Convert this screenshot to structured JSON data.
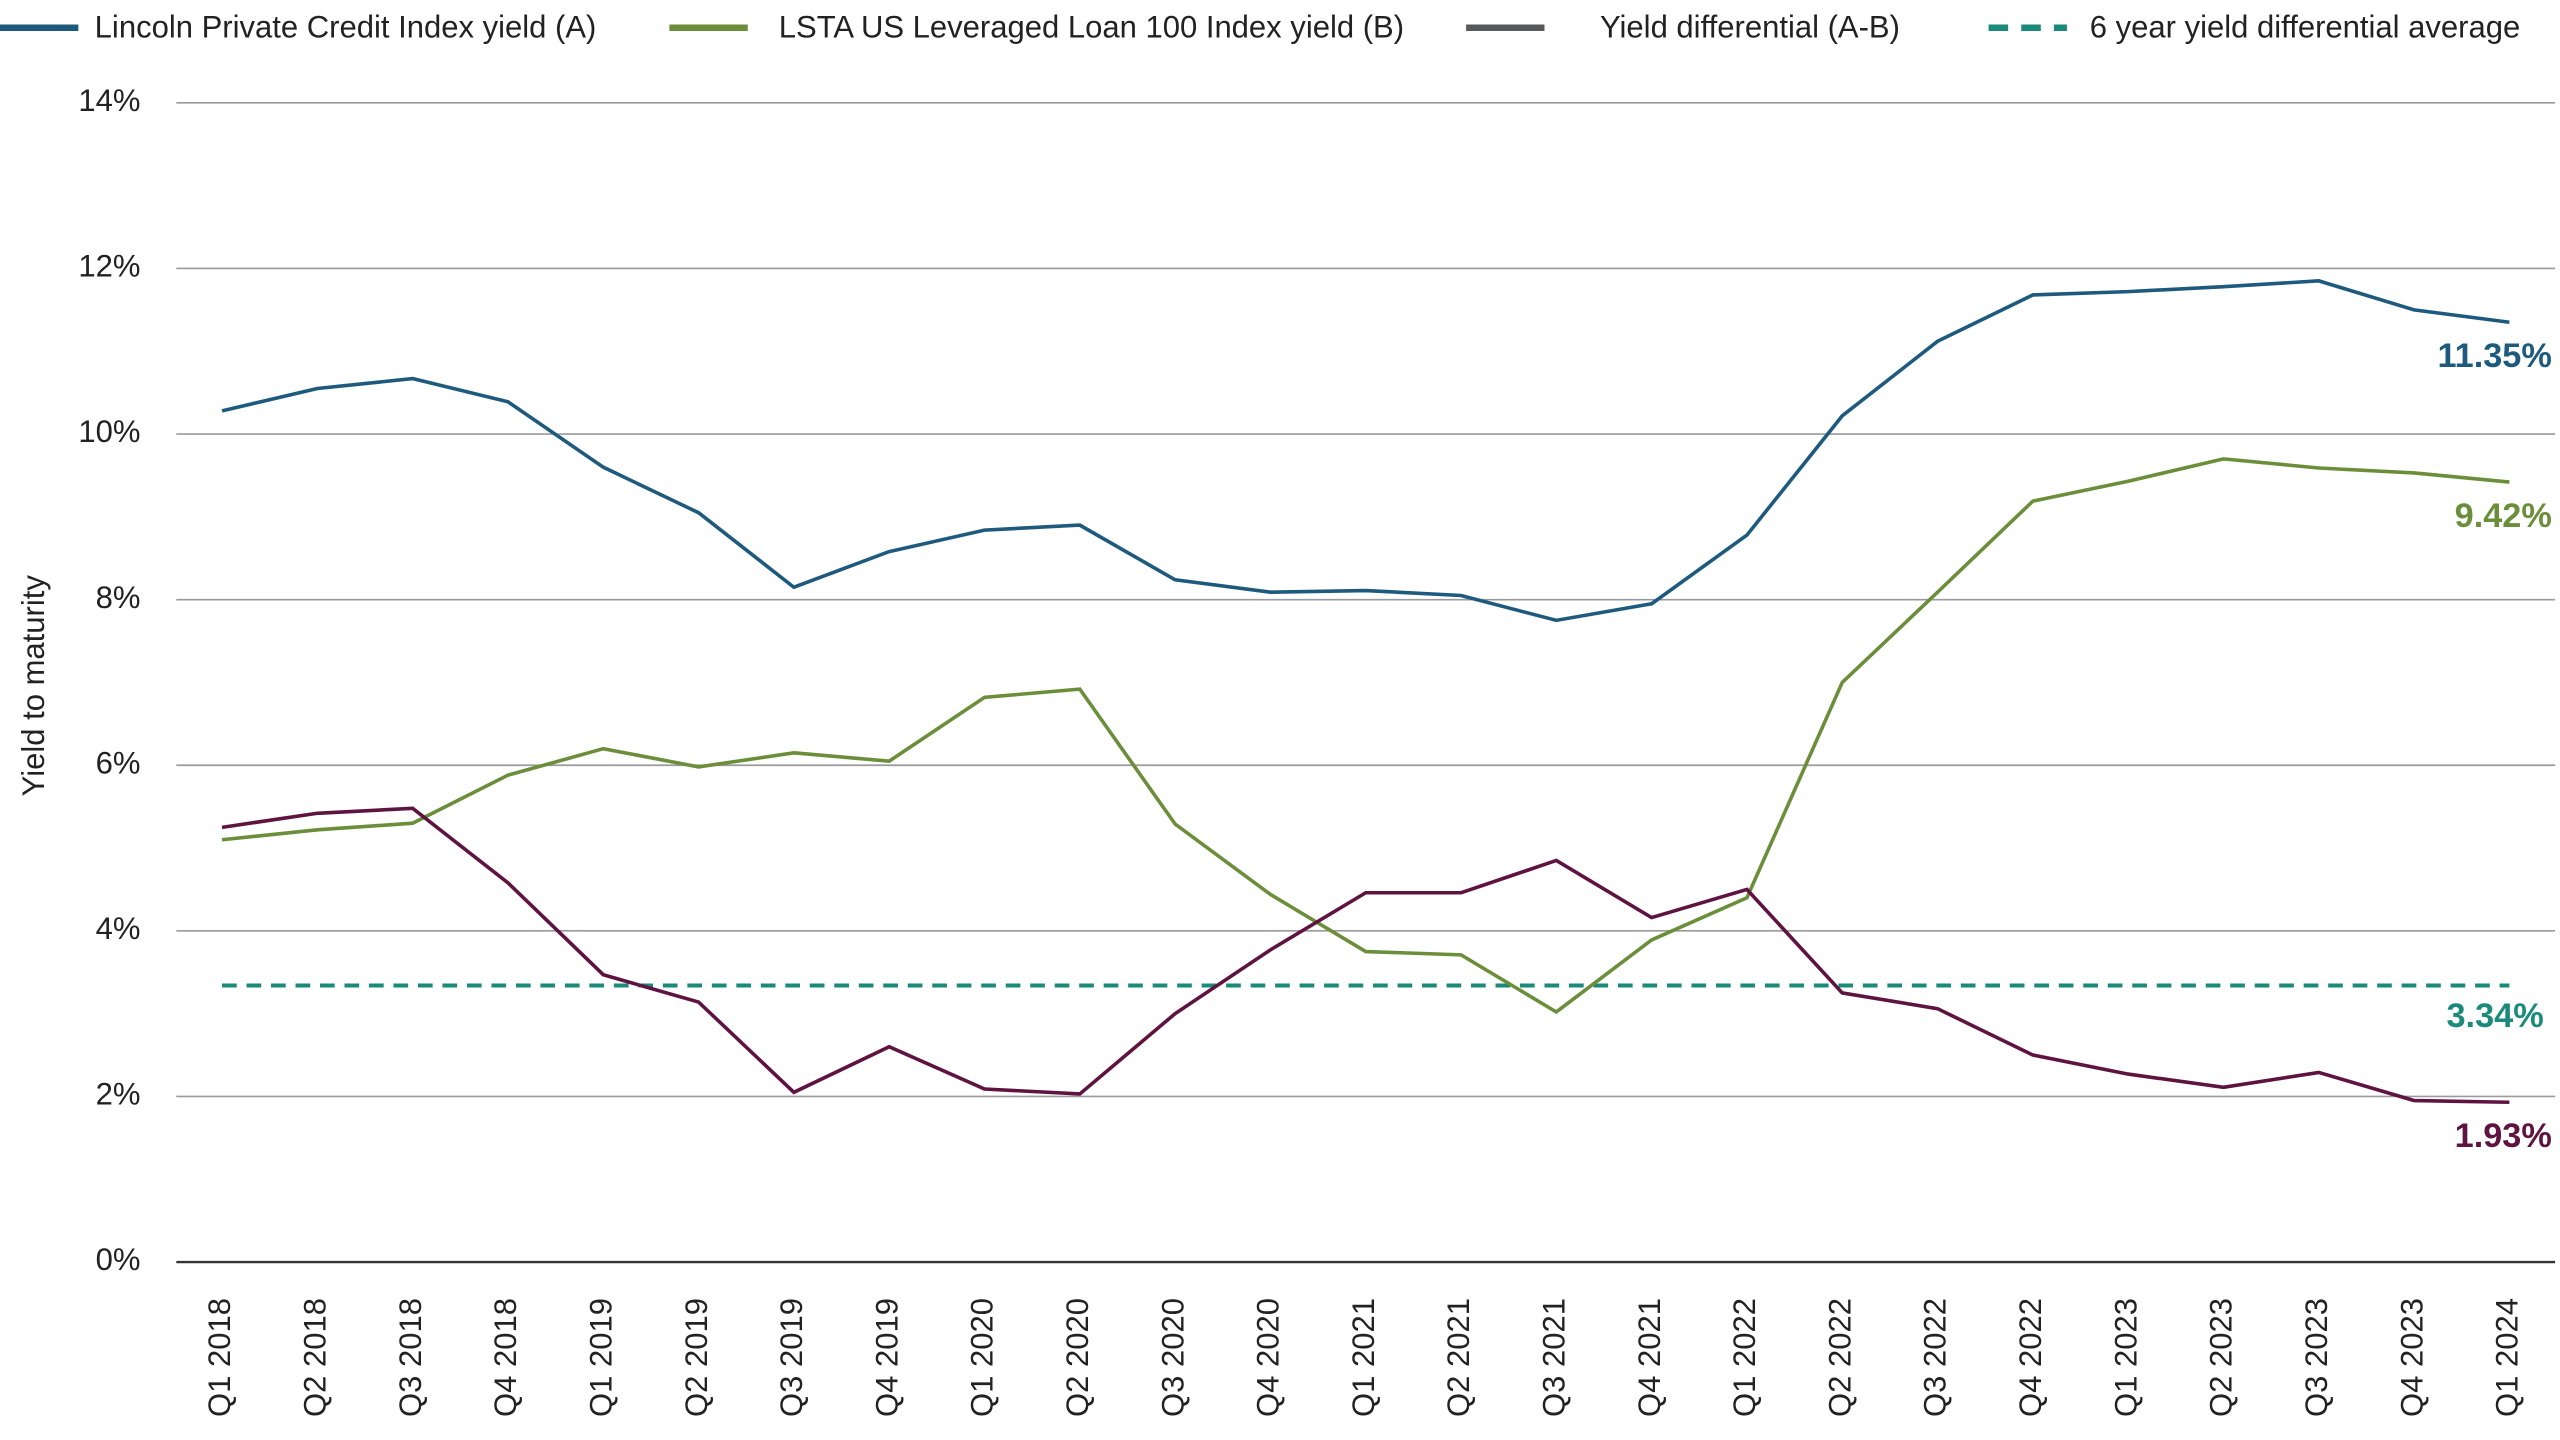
{
  "chart_data": {
    "type": "line",
    "y_label": "Yield to maturity",
    "categories": [
      "Q1 2018",
      "Q2 2018",
      "Q3 2018",
      "Q4 2018",
      "Q1 2019",
      "Q2 2019",
      "Q3 2019",
      "Q4 2019",
      "Q1 2020",
      "Q2 2020",
      "Q3 2020",
      "Q4 2020",
      "Q1 2021",
      "Q2 2021",
      "Q3 2021",
      "Q4 2021",
      "Q1 2022",
      "Q2 2022",
      "Q3 2022",
      "Q4 2022",
      "Q1 2023",
      "Q2 2023",
      "Q3 2023",
      "Q4 2023",
      "Q1 2024"
    ],
    "series": [
      {
        "name": "Lincoln Private Credit Index yield (A)",
        "color": "#1d5a7e",
        "legend_color": "#1d5a7e",
        "end_label": "11.35%",
        "values": [
          10.28,
          10.55,
          10.67,
          10.39,
          9.6,
          9.05,
          8.15,
          8.58,
          8.84,
          8.9,
          8.24,
          8.09,
          8.11,
          8.05,
          7.75,
          7.95,
          8.78,
          10.22,
          11.12,
          11.68,
          11.72,
          11.78,
          11.85,
          11.5,
          11.35
        ]
      },
      {
        "name": "LSTA US Leveraged Loan 100 Index yield (B)",
        "color": "#6b8e3a",
        "legend_color": "#6b8e3a",
        "end_label": "9.42%",
        "values": [
          5.1,
          5.22,
          5.3,
          5.88,
          6.2,
          5.98,
          6.15,
          6.05,
          6.82,
          6.92,
          5.29,
          4.44,
          3.75,
          3.71,
          3.02,
          3.89,
          4.4,
          7.0,
          8.09,
          9.19,
          9.43,
          9.7,
          9.59,
          9.53,
          9.42
        ]
      },
      {
        "name": "Yield differential (A-B)",
        "color": "#5e1340",
        "legend_color": "#58595b",
        "end_label": "1.93%",
        "values": [
          5.25,
          5.42,
          5.48,
          4.58,
          3.47,
          3.14,
          2.05,
          2.6,
          2.09,
          2.03,
          3.0,
          3.77,
          4.46,
          4.46,
          4.85,
          4.16,
          4.5,
          3.25,
          3.06,
          2.5,
          2.27,
          2.11,
          2.29,
          1.95,
          1.93
        ]
      }
    ],
    "average": {
      "name": "6 year yield differential average",
      "color": "#1a8a7a",
      "value": 3.34,
      "label": "3.34%",
      "dashed": true
    },
    "ylim": [
      0,
      14
    ],
    "yticks": [
      {
        "value": 0,
        "label": "0%"
      },
      {
        "value": 2,
        "label": "2%"
      },
      {
        "value": 4,
        "label": "4%"
      },
      {
        "value": 6,
        "label": "6%"
      },
      {
        "value": 8,
        "label": "8%"
      },
      {
        "value": 10,
        "label": "10%"
      },
      {
        "value": 12,
        "label": "12%"
      },
      {
        "value": 14,
        "label": "14%"
      }
    ],
    "grid": true
  }
}
